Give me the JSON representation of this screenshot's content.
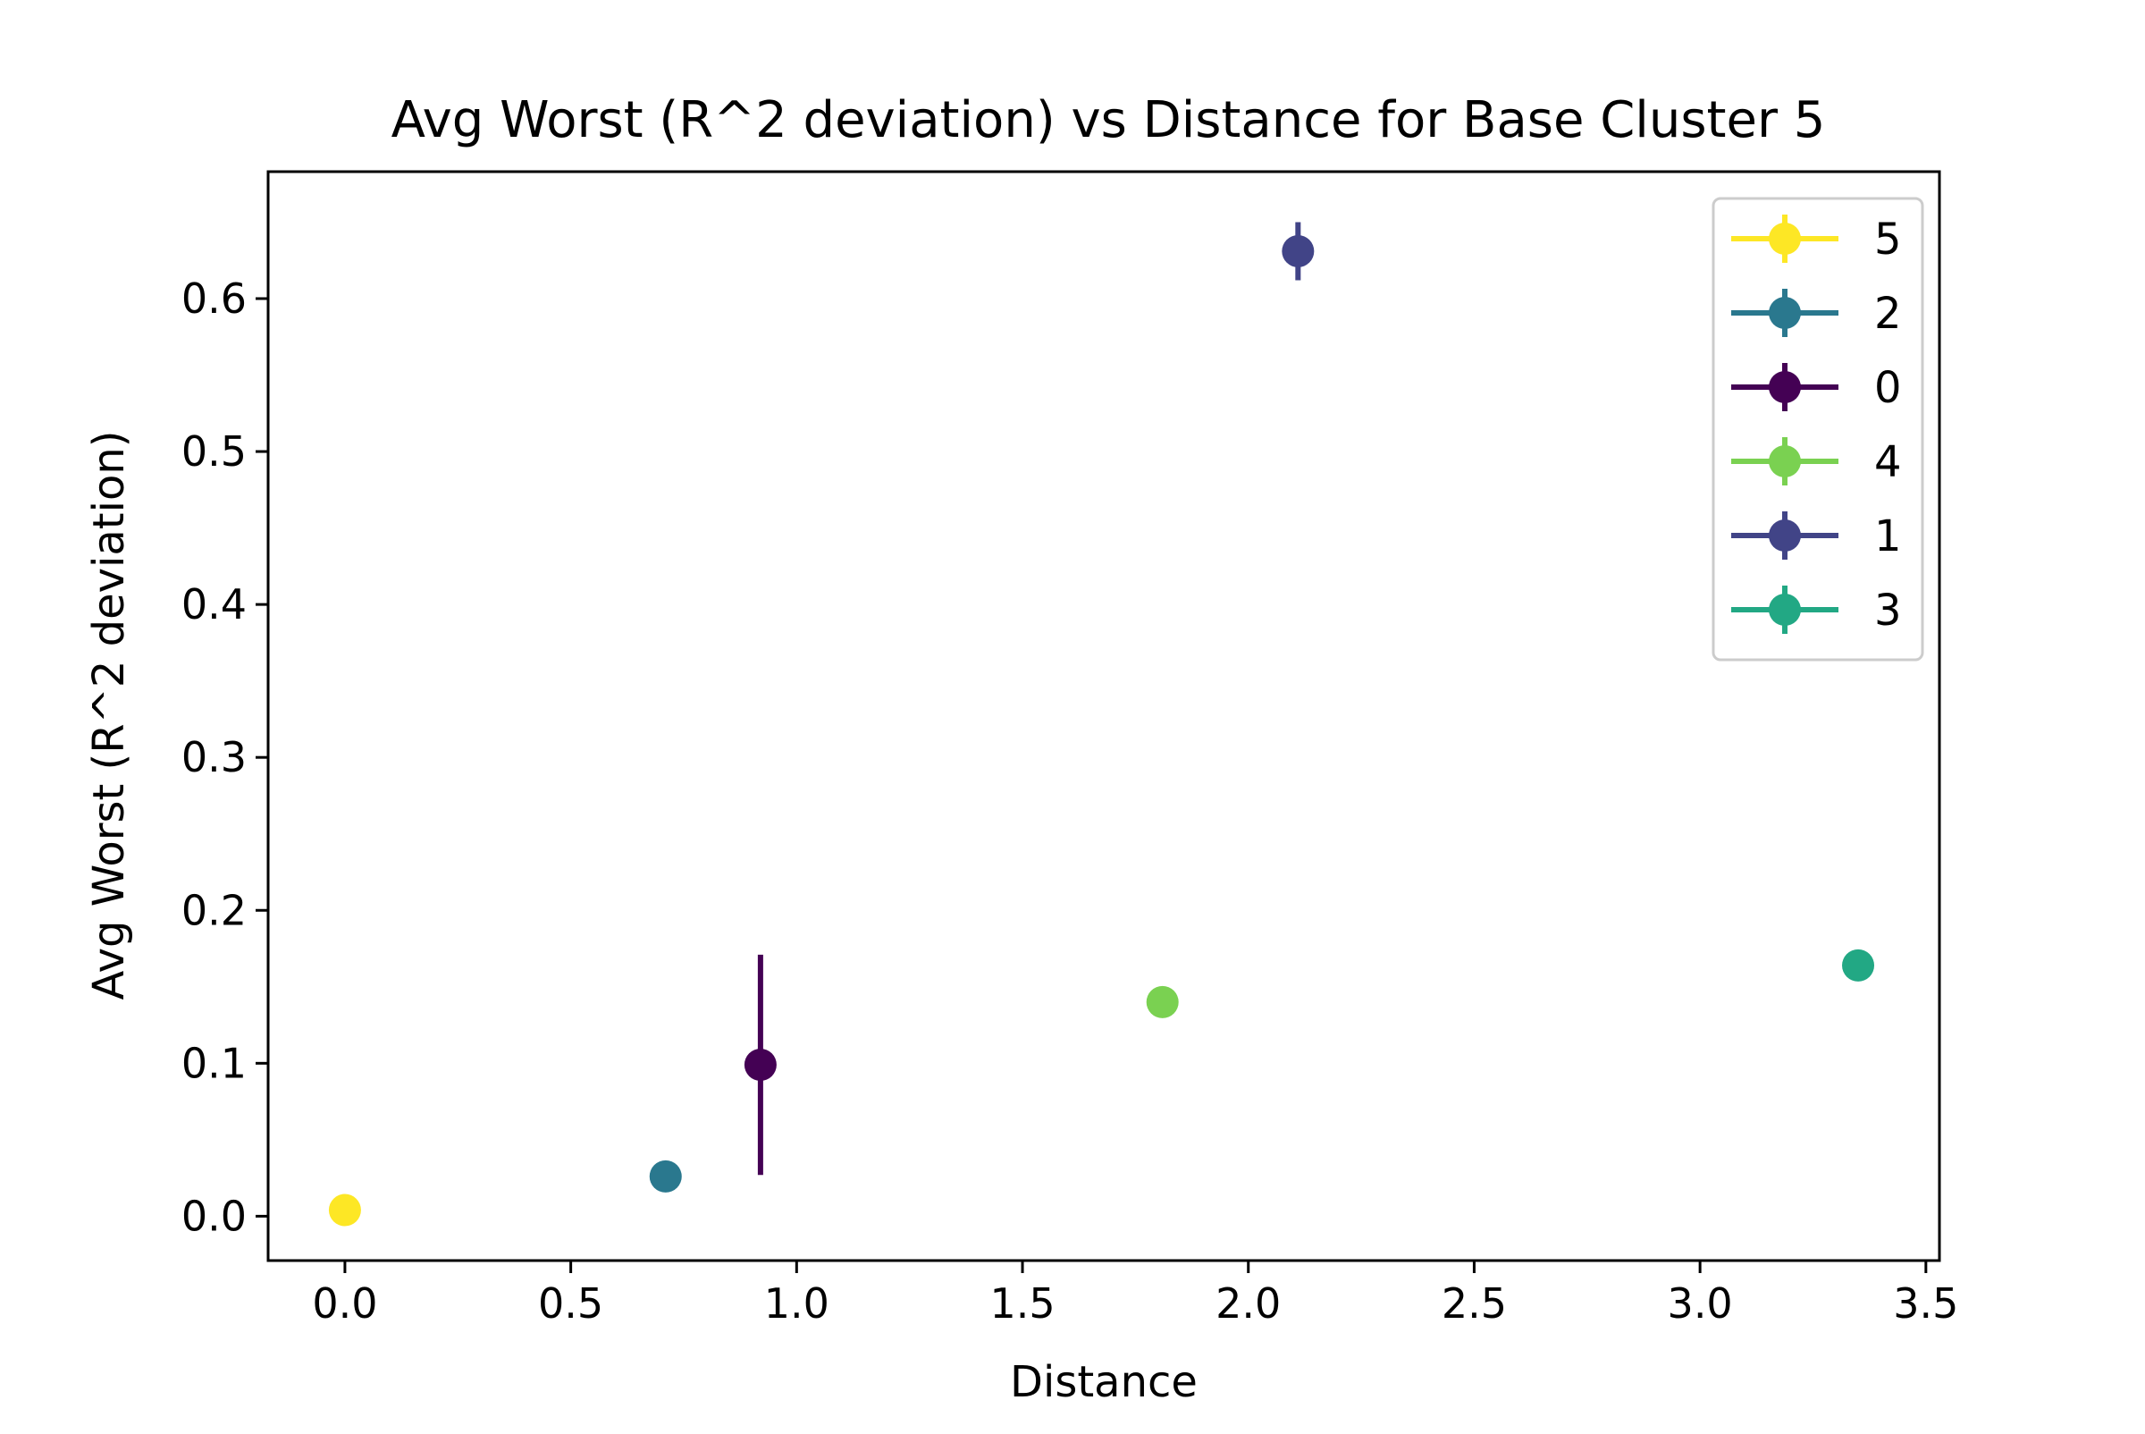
{
  "chart_data": {
    "type": "scatter",
    "title": "Avg Worst (R^2 deviation) vs Distance for Base Cluster 5",
    "xlabel": "Distance",
    "ylabel": "Avg Worst (R^2 deviation)",
    "xlim": [
      -0.17,
      3.53
    ],
    "ylim": [
      -0.029,
      0.683
    ],
    "xticks": [
      0.0,
      0.5,
      1.0,
      1.5,
      2.0,
      2.5,
      3.0,
      3.5
    ],
    "xtick_labels": [
      "0.0",
      "0.5",
      "1.0",
      "1.5",
      "2.0",
      "2.5",
      "3.0",
      "3.5"
    ],
    "yticks": [
      0.0,
      0.1,
      0.2,
      0.3,
      0.4,
      0.5,
      0.6
    ],
    "ytick_labels": [
      "0.0",
      "0.1",
      "0.2",
      "0.3",
      "0.4",
      "0.5",
      "0.6"
    ],
    "grid": false,
    "legend_position": "top-right",
    "series": [
      {
        "name": "5",
        "color": "#fde725",
        "x": 0.0,
        "y": 0.004,
        "err": 0.0
      },
      {
        "name": "2",
        "color": "#2a788e",
        "x": 0.71,
        "y": 0.026,
        "err": 0.0
      },
      {
        "name": "0",
        "color": "#440154",
        "x": 0.92,
        "y": 0.099,
        "err": 0.072
      },
      {
        "name": "4",
        "color": "#7ad151",
        "x": 1.81,
        "y": 0.14,
        "err": 0.0
      },
      {
        "name": "1",
        "color": "#414487",
        "x": 2.11,
        "y": 0.631,
        "err": 0.019
      },
      {
        "name": "3",
        "color": "#22a884",
        "x": 3.35,
        "y": 0.164,
        "err": 0.0
      }
    ]
  }
}
